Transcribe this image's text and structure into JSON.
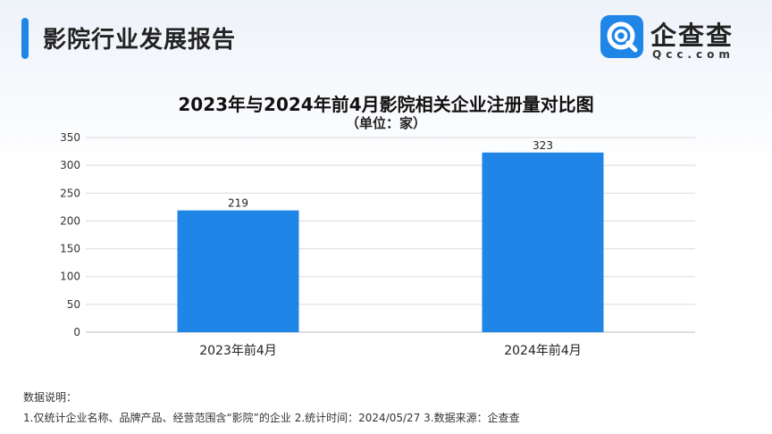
{
  "header": {
    "title": "影院行业发展报告",
    "logo": {
      "icon": "qcc-logo-icon",
      "name": "企查查",
      "domain": "Qcc.com"
    }
  },
  "colors": {
    "accent": "#1f86e8",
    "bar": "#1f86e8",
    "grid": "#dcdcdc"
  },
  "chart_data": {
    "type": "bar",
    "title": "2023年与2024年前4月影院相关企业注册量对比图",
    "subtitle": "（单位：家）",
    "categories": [
      "2023年前4月",
      "2024年前4月"
    ],
    "values": [
      219,
      323
    ],
    "data_labels": [
      "219",
      "323"
    ],
    "ylim": [
      0,
      350
    ],
    "yticks": [
      0,
      50,
      100,
      150,
      200,
      250,
      300,
      350
    ],
    "grid": true,
    "legend": "none"
  },
  "footer": {
    "label": "数据说明：",
    "note": "1.仅统计企业名称、品牌产品、经营范围含“影院”的企业  2.统计时间：2024/05/27   3.数据来源：企查查"
  }
}
